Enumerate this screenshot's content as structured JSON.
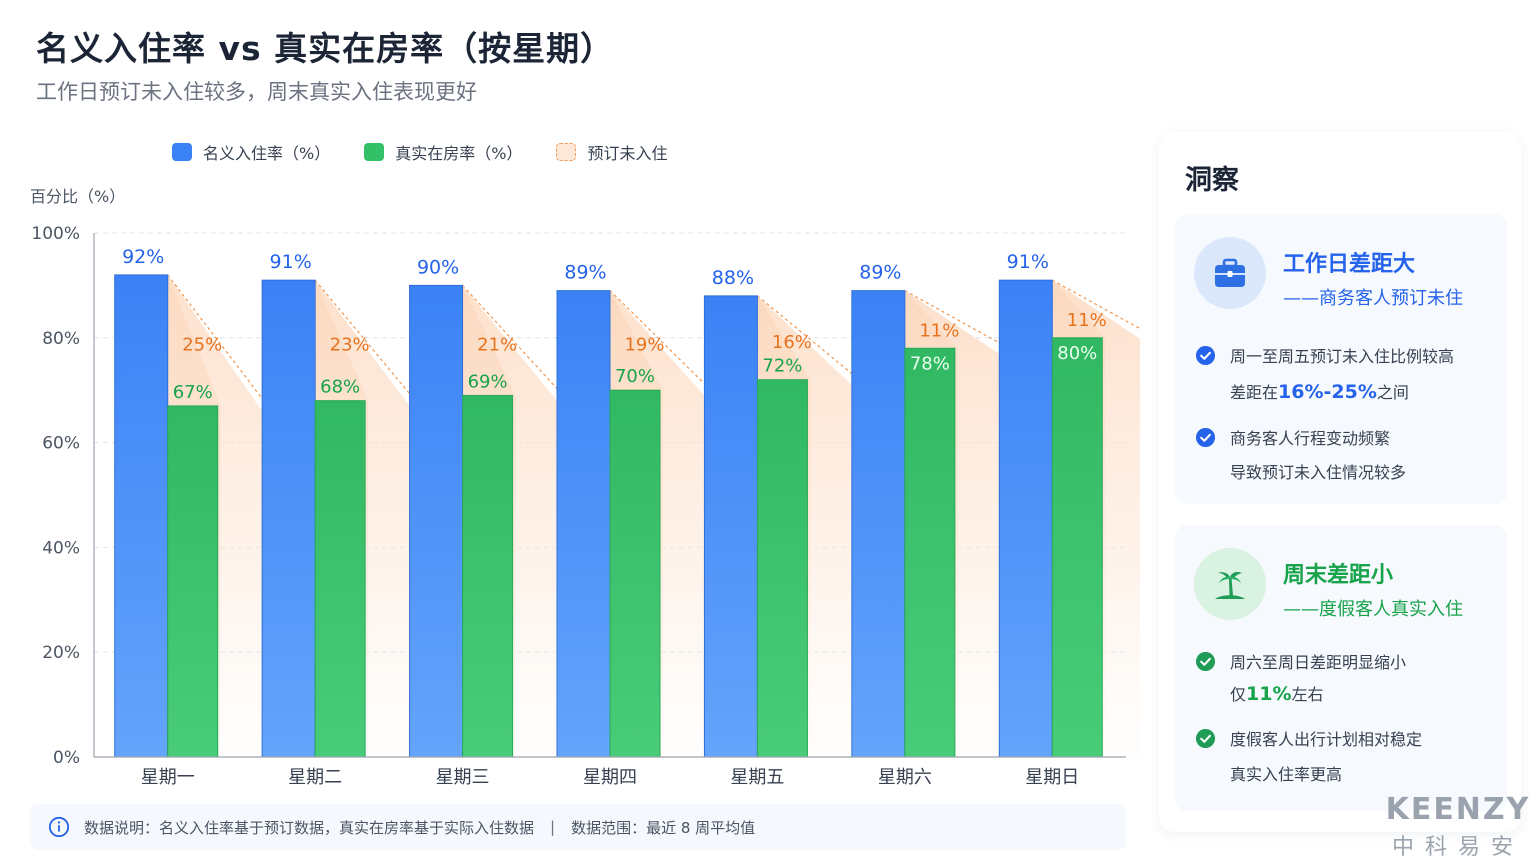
{
  "header": {
    "title": "名义入住率 vs 真实在房率（按星期）",
    "subtitle": "工作日预订未入住较多，周末真实入住表现更好"
  },
  "legend": {
    "nominal": "名义入住率（%）",
    "actual": "真实在房率（%）",
    "gap": "预订未入住"
  },
  "colors": {
    "nominal": "#3b82f6",
    "actual": "#34c067",
    "gap_label": "#e8731f",
    "gap_fill": "#fde3cf"
  },
  "chart_data": {
    "type": "bar",
    "ylabel": "百分比（%）",
    "ylim": [
      0,
      100
    ],
    "yticks": [
      0,
      20,
      40,
      60,
      80,
      100
    ],
    "ytick_labels": [
      "0%",
      "20%",
      "40%",
      "60%",
      "80%",
      "100%"
    ],
    "categories": [
      "星期一",
      "星期二",
      "星期三",
      "星期四",
      "星期五",
      "星期六",
      "星期日"
    ],
    "series": [
      {
        "name": "名义入住率（%）",
        "values": [
          92,
          91,
          90,
          89,
          88,
          89,
          91
        ],
        "labels": [
          "92%",
          "91%",
          "90%",
          "89%",
          "88%",
          "89%",
          "91%"
        ]
      },
      {
        "name": "真实在房率（%）",
        "values": [
          67,
          68,
          69,
          70,
          72,
          78,
          80
        ],
        "labels": [
          "67%",
          "68%",
          "69%",
          "70%",
          "72%",
          "78%",
          "80%"
        ]
      }
    ],
    "gap": {
      "name": "预订未入住",
      "values": [
        25,
        23,
        21,
        19,
        16,
        11,
        11
      ],
      "labels": [
        "25%",
        "23%",
        "21%",
        "19%",
        "16%",
        "11%",
        "11%"
      ]
    },
    "grid": true,
    "legend_position": "top-left"
  },
  "footnote": {
    "left": "数据说明：名义入住率基于预订数据，真实在房率基于实际入住数据",
    "separator": "|",
    "right": "数据范围：最近 8 周平均值"
  },
  "insights": {
    "title": "洞察",
    "cards": [
      {
        "icon": "briefcase-icon",
        "head": "工作日差距大",
        "sub": "——商务客人预订未住",
        "b1_l1": "周一至周五预订未入住比例较高",
        "b1_l2_pre": "差距在",
        "b1_l2_hl": "16%-25%",
        "b1_l2_post": "之间",
        "b2_l1": "商务客人行程变动频繁",
        "b2_l2": "导致预订未入住情况较多"
      },
      {
        "icon": "palm-tree-icon",
        "head": "周末差距小",
        "sub": "——度假客人真实入住",
        "b1_l1": "周六至周日差距明显缩小",
        "b1_l2_pre": "仅",
        "b1_l2_hl": "11%",
        "b1_l2_post": "左右",
        "b2_l1": "度假客人出行计划相对稳定",
        "b2_l2": "真实入住率更高"
      }
    ]
  },
  "logo": {
    "en": "KEENZY",
    "cn": "中科易安"
  }
}
